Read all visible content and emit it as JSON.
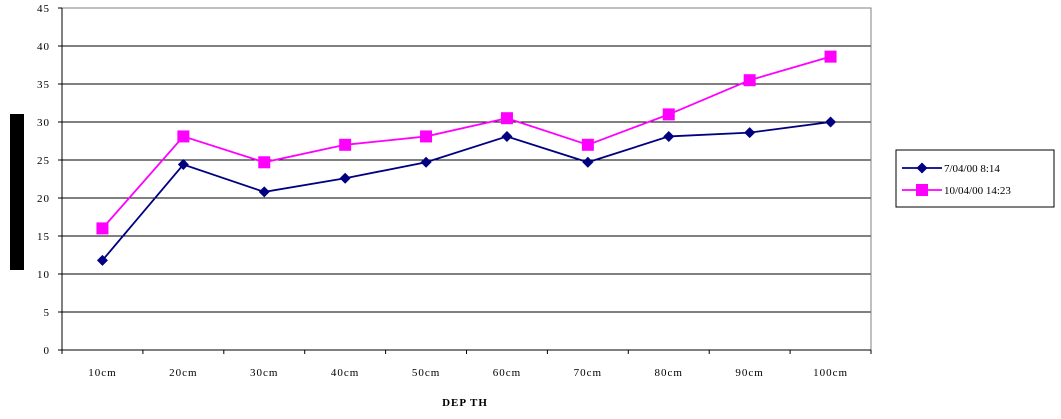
{
  "chart_data": {
    "type": "line",
    "title": "",
    "xlabel": "DEP TH",
    "ylabel": "",
    "categories": [
      "10cm",
      "20cm",
      "30cm",
      "40cm",
      "50cm",
      "60cm",
      "70cm",
      "80cm",
      "90cm",
      "100cm"
    ],
    "ylim": [
      0,
      45
    ],
    "yticks": [
      0,
      5,
      10,
      15,
      20,
      25,
      30,
      35,
      40,
      45
    ],
    "grid": true,
    "legend_position": "right",
    "series": [
      {
        "name": "7/04/00 8:14",
        "values": [
          11.8,
          24.4,
          20.8,
          22.6,
          24.7,
          28.1,
          24.7,
          28.1,
          28.6,
          30.0
        ],
        "color": "#000080",
        "marker": "diamond"
      },
      {
        "name": "10/04/00 14:23",
        "values": [
          16.0,
          28.1,
          24.7,
          27.0,
          28.1,
          30.5,
          27.0,
          31.0,
          35.5,
          38.6
        ],
        "color": "#ff00ff",
        "marker": "square"
      }
    ]
  }
}
